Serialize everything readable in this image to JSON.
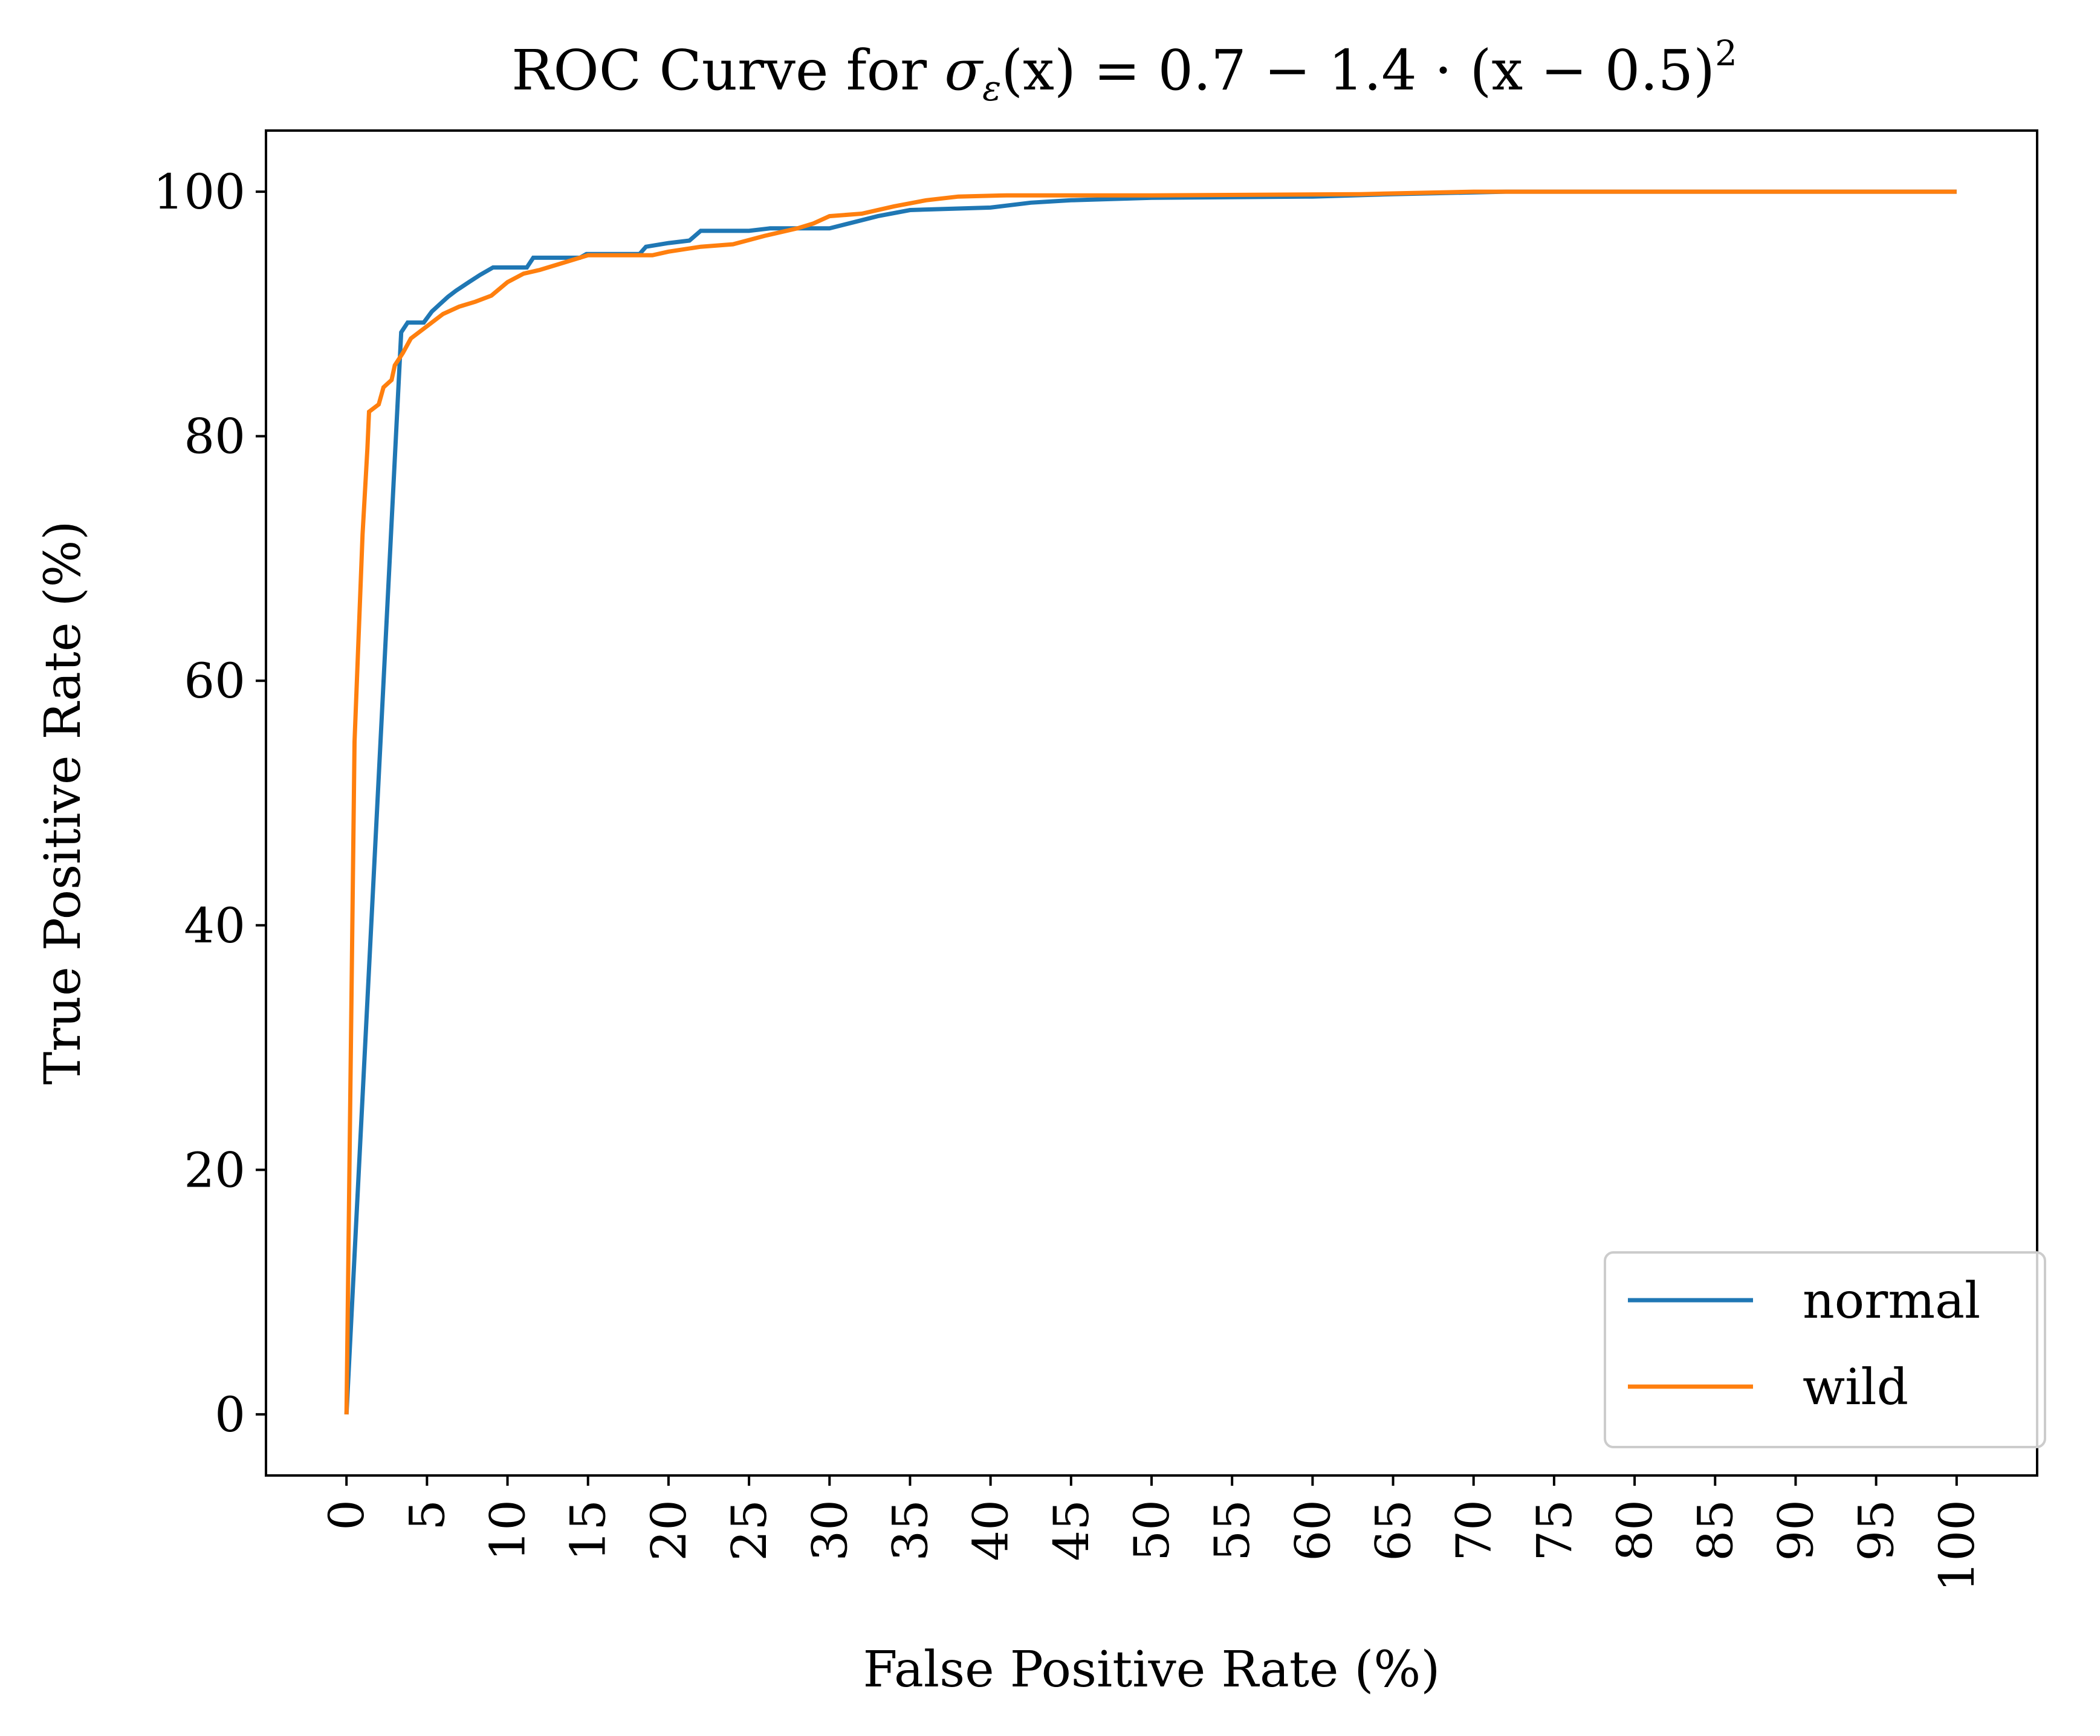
{
  "chart_data": {
    "type": "line",
    "title": "ROC Curve for σε(x) = 0.7 − 1.4 · (x − 0.5)²",
    "title_parts": {
      "prefix": "ROC Curve for ",
      "sigma": "σ",
      "sigma_sub": "ε",
      "mid": "(x) = 0.7 − 1.4 · (x − 0.5)",
      "sup": "2"
    },
    "xlabel": "False Positive Rate (%)",
    "ylabel": "True Positive Rate (%)",
    "xlim": [
      -5,
      105
    ],
    "ylim": [
      -5,
      105
    ],
    "xticks": [
      0,
      5,
      10,
      15,
      20,
      25,
      30,
      35,
      40,
      45,
      50,
      55,
      60,
      65,
      70,
      75,
      80,
      85,
      90,
      95,
      100
    ],
    "yticks": [
      0,
      20,
      40,
      60,
      80,
      100
    ],
    "legend_position": "lower-right",
    "series": [
      {
        "name": "normal",
        "color": "#1f77b4",
        "points": [
          [
            0,
            0
          ],
          [
            3.4,
            88.5
          ],
          [
            3.8,
            89.3
          ],
          [
            4.8,
            89.3
          ],
          [
            5.3,
            90.2
          ],
          [
            5.8,
            90.8
          ],
          [
            6.3,
            91.4
          ],
          [
            6.8,
            91.9
          ],
          [
            7.6,
            92.6
          ],
          [
            8.3,
            93.2
          ],
          [
            9.1,
            93.8
          ],
          [
            11.2,
            93.8
          ],
          [
            11.6,
            94.6
          ],
          [
            14.5,
            94.6
          ],
          [
            14.9,
            94.9
          ],
          [
            18.2,
            94.9
          ],
          [
            18.6,
            95.5
          ],
          [
            20.0,
            95.8
          ],
          [
            21.3,
            96.0
          ],
          [
            22.0,
            96.8
          ],
          [
            25.0,
            96.8
          ],
          [
            26.3,
            97.0
          ],
          [
            30.0,
            97.0
          ],
          [
            31.5,
            97.5
          ],
          [
            33.0,
            98.0
          ],
          [
            35.0,
            98.5
          ],
          [
            40.0,
            98.7
          ],
          [
            42.5,
            99.1
          ],
          [
            45.0,
            99.3
          ],
          [
            50.0,
            99.5
          ],
          [
            60.0,
            99.6
          ],
          [
            65.0,
            99.8
          ],
          [
            72.0,
            100.0
          ],
          [
            100.0,
            100.0
          ]
        ]
      },
      {
        "name": "wild",
        "color": "#ff7f0e",
        "points": [
          [
            0,
            0
          ],
          [
            0.5,
            55.0
          ],
          [
            1.0,
            72.0
          ],
          [
            1.3,
            79.0
          ],
          [
            1.4,
            82.0
          ],
          [
            2.0,
            82.6
          ],
          [
            2.3,
            84.0
          ],
          [
            2.8,
            84.6
          ],
          [
            3.0,
            85.8
          ],
          [
            3.5,
            86.8
          ],
          [
            4.0,
            88.0
          ],
          [
            5.0,
            89.0
          ],
          [
            6.0,
            90.0
          ],
          [
            7.0,
            90.6
          ],
          [
            8.0,
            91.0
          ],
          [
            9.0,
            91.5
          ],
          [
            10.0,
            92.6
          ],
          [
            11.0,
            93.3
          ],
          [
            12.0,
            93.6
          ],
          [
            13.0,
            94.0
          ],
          [
            14.0,
            94.4
          ],
          [
            15.0,
            94.8
          ],
          [
            19.0,
            94.8
          ],
          [
            20.0,
            95.1
          ],
          [
            22.0,
            95.5
          ],
          [
            24.0,
            95.7
          ],
          [
            26.0,
            96.4
          ],
          [
            28.0,
            97.0
          ],
          [
            29.0,
            97.4
          ],
          [
            30.0,
            98.0
          ],
          [
            32.0,
            98.2
          ],
          [
            34.0,
            98.8
          ],
          [
            36.0,
            99.3
          ],
          [
            38.0,
            99.6
          ],
          [
            41.0,
            99.7
          ],
          [
            50.0,
            99.7
          ],
          [
            63.0,
            99.8
          ],
          [
            70.0,
            100.0
          ],
          [
            100.0,
            100.0
          ]
        ]
      }
    ]
  }
}
